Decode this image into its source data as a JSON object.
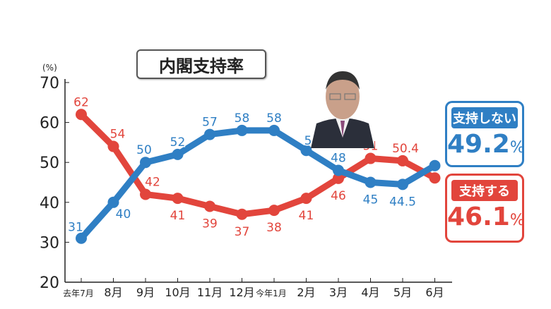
{
  "chart_data": {
    "type": "line",
    "title": "内閣支持率",
    "ylabel": "(%)",
    "ylim": [
      20,
      70
    ],
    "yticks": [
      20,
      30,
      40,
      50,
      60,
      70
    ],
    "categories": [
      "去年7月",
      "8月",
      "9月",
      "10月",
      "11月",
      "12月",
      "今年1月",
      "2月",
      "3月",
      "4月",
      "5月",
      "6月"
    ],
    "grid": false,
    "legend_placement": "right",
    "series": [
      {
        "name": "支持しない",
        "color": "#2f7fc4",
        "values": [
          31,
          40,
          50,
          52,
          57,
          58,
          58,
          53,
          48,
          45,
          44.5,
          49.2
        ],
        "labels": [
          "31",
          "40",
          "50",
          "52",
          "57",
          "58",
          "58",
          "53",
          "48",
          "45",
          "44.5",
          ""
        ]
      },
      {
        "name": "支持する",
        "color": "#e2453c",
        "values": [
          62,
          54,
          42,
          41,
          39,
          37,
          38,
          41,
          46,
          51,
          50.4,
          46.1
        ],
        "labels": [
          "62",
          "54",
          "42",
          "41",
          "39",
          "37",
          "38",
          "41",
          "46",
          "51",
          "50.4",
          ""
        ]
      }
    ]
  },
  "legend": {
    "disapprove": {
      "label": "支持しない",
      "value": "49.2",
      "unit": "%"
    },
    "approve": {
      "label": "支持する",
      "value": "46.1",
      "unit": "%"
    }
  }
}
